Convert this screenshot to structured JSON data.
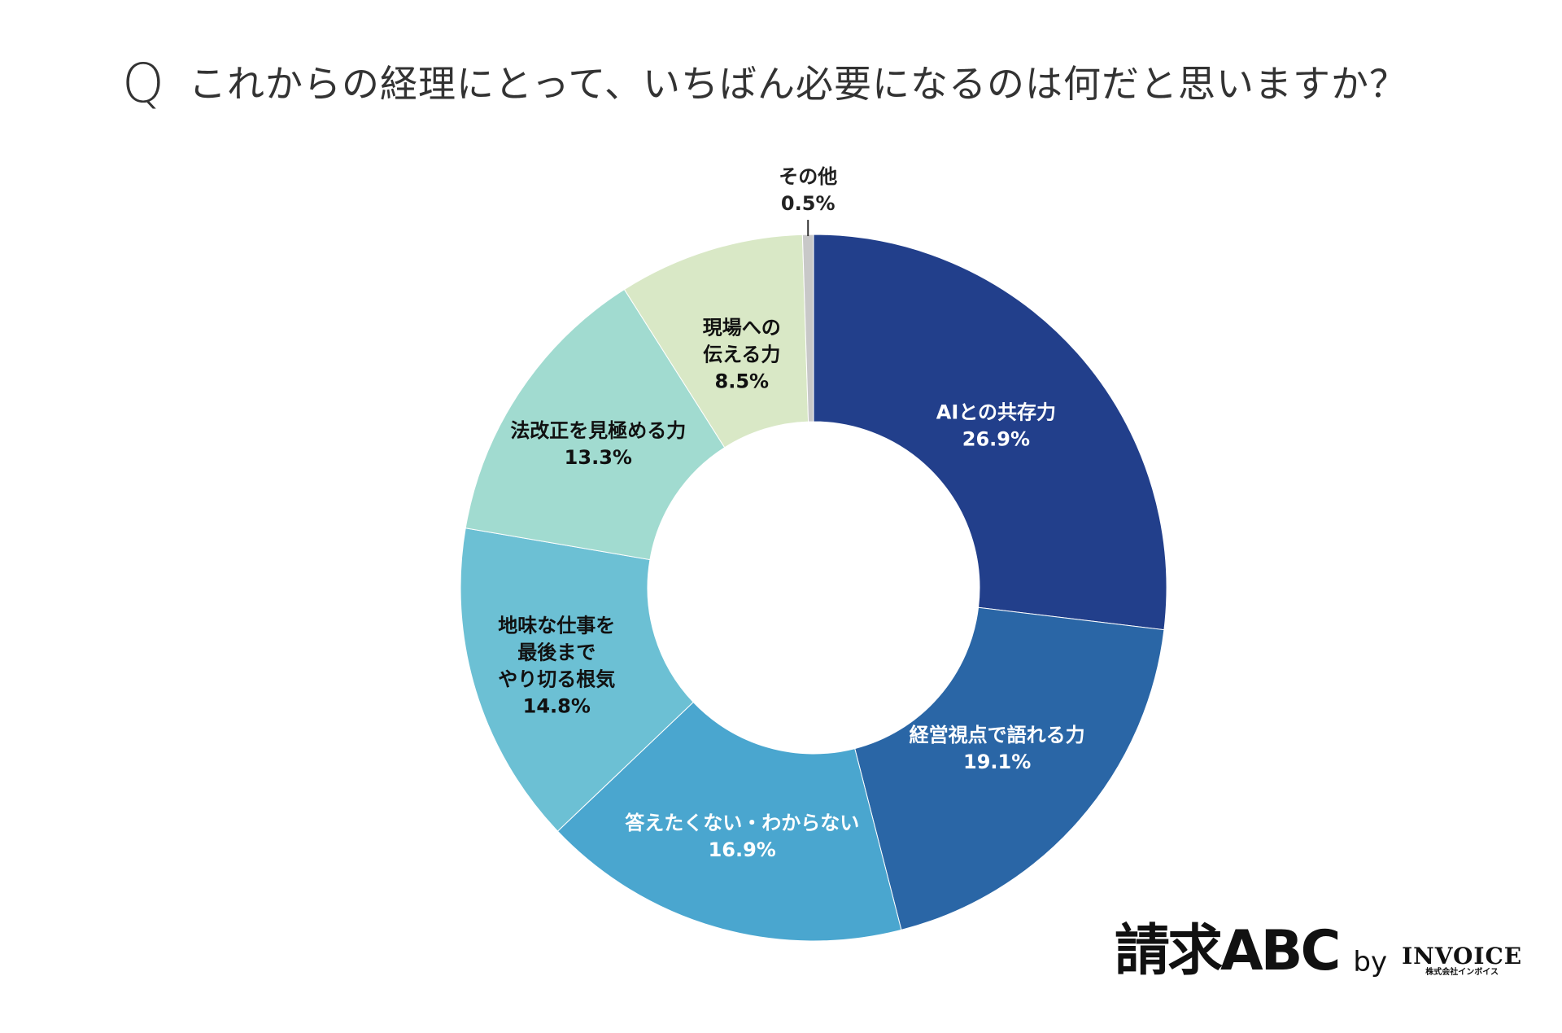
{
  "page": {
    "q_mark": "Q",
    "title": "これからの経理にとって、いちばん必要になるのは何だと思いますか？"
  },
  "chart_data": {
    "type": "pie",
    "donut": true,
    "unit": "%",
    "slices": [
      {
        "label": "AIとの共存力",
        "value": 26.9,
        "color": "#223f8b",
        "text_color": "#ffffff"
      },
      {
        "label": "経営視点で語れる力",
        "value": 19.1,
        "color": "#2a66a6",
        "text_color": "#ffffff"
      },
      {
        "label": "答えたくない・わからない",
        "value": 16.9,
        "color": "#4aa6cf",
        "text_color": "#ffffff"
      },
      {
        "label": "地味な仕事を最後までやり切る根気",
        "value": 14.8,
        "color": "#6cc0d4",
        "text_color": "#111111"
      },
      {
        "label": "法改正を見極める力",
        "value": 13.3,
        "color": "#a1dbd0",
        "text_color": "#111111"
      },
      {
        "label": "現場への伝える力",
        "value": 8.5,
        "color": "#d9e8c6",
        "text_color": "#111111"
      },
      {
        "label": "その他",
        "value": 0.5,
        "color": "#c8c8c8",
        "text_color": "#111111"
      }
    ]
  },
  "brand": {
    "main": "請求ABC",
    "by": "by",
    "invoice": "INVOICE",
    "sub": "株式会社インボイス"
  }
}
